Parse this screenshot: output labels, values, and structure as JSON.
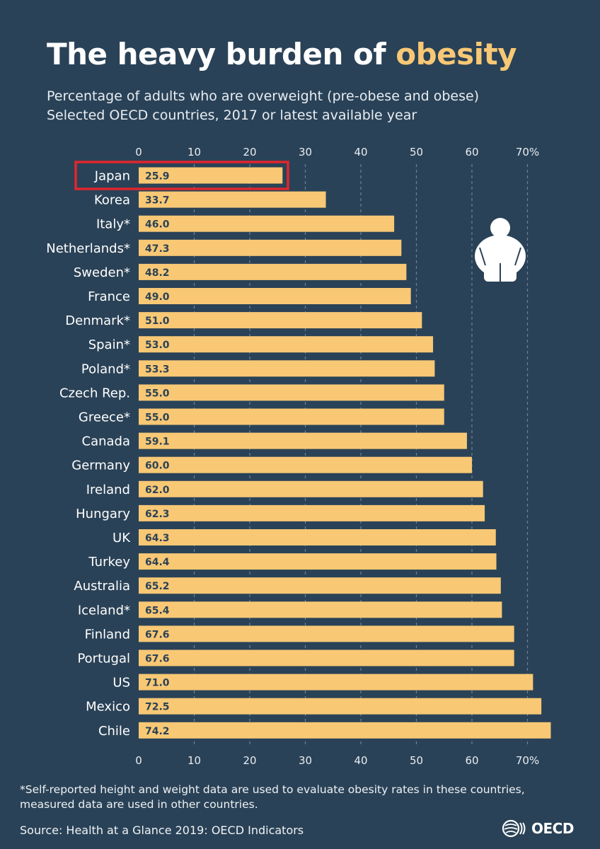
{
  "title": {
    "main": "The heavy burden of ",
    "accent": "obesity"
  },
  "subtitle": {
    "line1": "Percentage of adults who are overweight (pre-obese and obese)",
    "line2": "Selected OECD countries, 2017 or latest available year"
  },
  "footnote": {
    "line1": "*Self-reported height and weight data are used to evaluate obesity rates in these countries,",
    "line2": "measured data are used in other countries."
  },
  "source": "Source: Health at a Glance 2019: OECD Indicators",
  "logo": {
    "text": "OECD",
    "icon": "oecd-logo-icon"
  },
  "icons": {
    "figure": "overweight-person-icon"
  },
  "colors": {
    "background": "#2a4257",
    "bar": "#f8c875",
    "bar_label": "#2a4257",
    "accent": "#f8c875",
    "highlight_box": "#e0262d",
    "gridline": "#7f93a6"
  },
  "chart_data": {
    "type": "bar",
    "orientation": "horizontal",
    "categories": [
      "Japan",
      "Korea",
      "Italy*",
      "Netherlands*",
      "Sweden*",
      "France",
      "Denmark*",
      "Spain*",
      "Poland*",
      "Czech Rep.",
      "Greece*",
      "Canada",
      "Germany",
      "Ireland",
      "Hungary",
      "UK",
      "Turkey",
      "Australia",
      "Iceland*",
      "Finland",
      "Portugal",
      "US",
      "Mexico",
      "Chile"
    ],
    "values": [
      25.9,
      33.7,
      46.0,
      47.3,
      48.2,
      49.0,
      51.0,
      53.0,
      53.3,
      55.0,
      55.0,
      59.1,
      60.0,
      62.0,
      62.3,
      64.3,
      64.4,
      65.2,
      65.4,
      67.6,
      67.6,
      71.0,
      72.5,
      74.2
    ],
    "value_labels": [
      "25.9",
      "33.7",
      "46.0",
      "47.3",
      "48.2",
      "49.0",
      "51.0",
      "53.0",
      "53.3",
      "55.0",
      "55.0",
      "59.1",
      "60.0",
      "62.0",
      "62.3",
      "64.3",
      "64.4",
      "65.2",
      "65.4",
      "67.6",
      "67.6",
      "71.0",
      "72.5",
      "74.2"
    ],
    "x_ticks": [
      0,
      10,
      20,
      30,
      40,
      50,
      60,
      70
    ],
    "x_tick_labels": [
      "0",
      "10",
      "20",
      "30",
      "40",
      "50",
      "60",
      "70%"
    ],
    "xlim": [
      0,
      74.2
    ],
    "axis_position": "top and bottom",
    "grid": true,
    "highlighted_category": "Japan"
  }
}
